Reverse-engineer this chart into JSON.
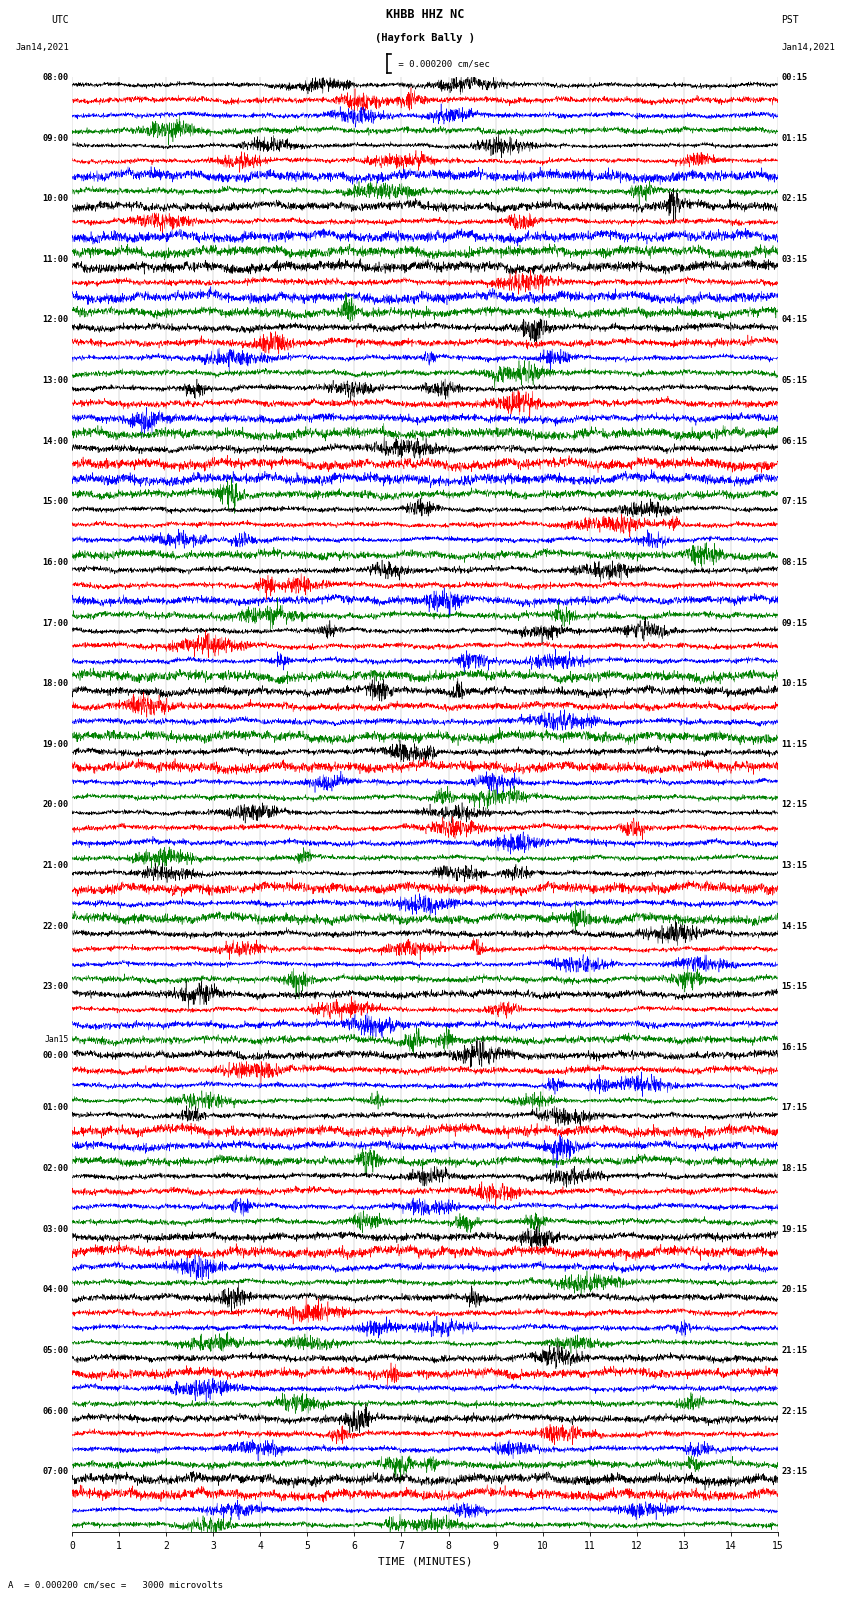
{
  "title_line1": "KHBB HHZ NC",
  "title_line2": "(Hayfork Bally )",
  "scale_label": " = 0.000200 cm/sec",
  "bottom_label": "A  = 0.000200 cm/sec =   3000 microvolts",
  "xlabel": "TIME (MINUTES)",
  "left_times_utc": [
    "08:00",
    "09:00",
    "10:00",
    "11:00",
    "12:00",
    "13:00",
    "14:00",
    "15:00",
    "16:00",
    "17:00",
    "18:00",
    "19:00",
    "20:00",
    "21:00",
    "22:00",
    "23:00",
    "00:00",
    "01:00",
    "02:00",
    "03:00",
    "04:00",
    "05:00",
    "06:00",
    "07:00"
  ],
  "right_times_pst": [
    "00:15",
    "01:15",
    "02:15",
    "03:15",
    "04:15",
    "05:15",
    "06:15",
    "07:15",
    "08:15",
    "09:15",
    "10:15",
    "11:15",
    "12:15",
    "13:15",
    "14:15",
    "15:15",
    "16:15",
    "17:15",
    "18:15",
    "19:15",
    "20:15",
    "21:15",
    "22:15",
    "23:15"
  ],
  "num_rows": 24,
  "traces_per_row": 4,
  "colors": [
    "black",
    "red",
    "blue",
    "green"
  ],
  "bg_color": "#ffffff",
  "fig_width": 8.5,
  "fig_height": 16.13,
  "dpi": 100,
  "xmin": 0,
  "xmax": 15,
  "xticks": [
    0,
    1,
    2,
    3,
    4,
    5,
    6,
    7,
    8,
    9,
    10,
    11,
    12,
    13,
    14,
    15
  ]
}
